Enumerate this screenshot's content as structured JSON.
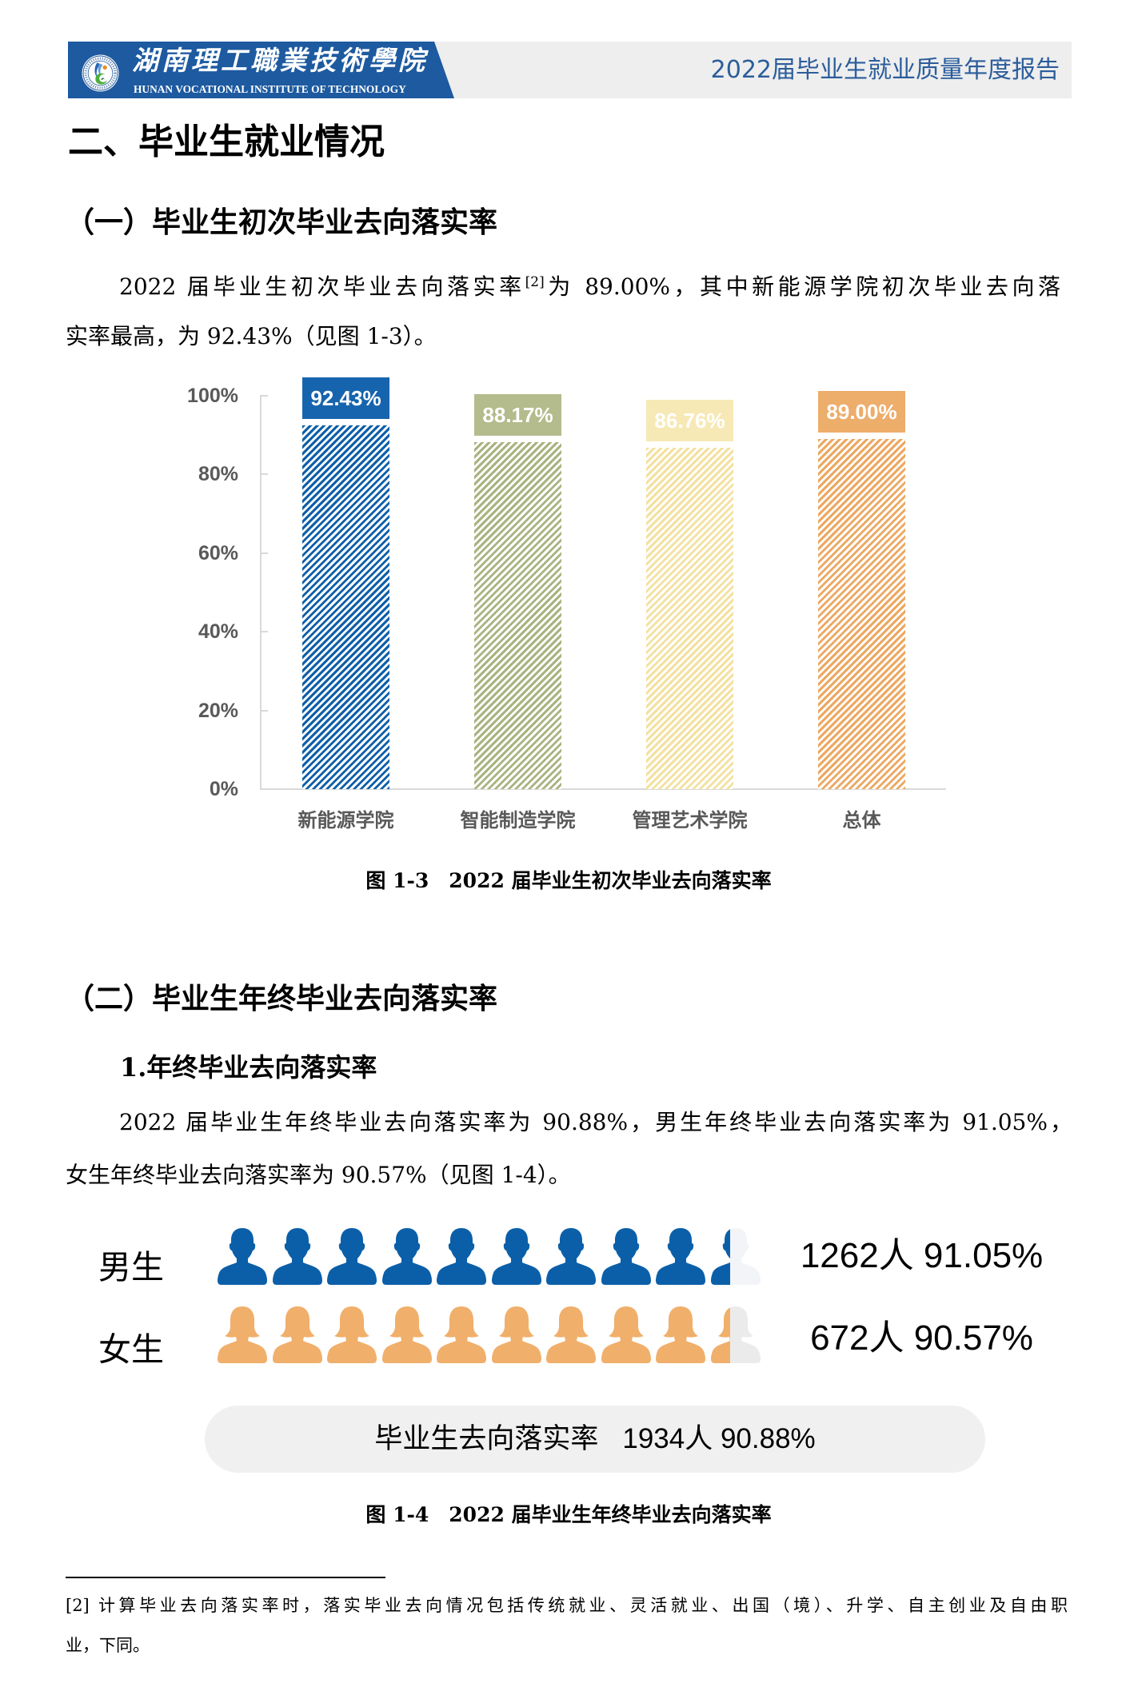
{
  "header": {
    "school_name_cn": "湖南理工職業技術學院",
    "school_name_en": "HUNAN VOCATIONAL INSTITUTE OF TECHNOLOGY",
    "report_title": "2022届毕业生就业质量年度报告",
    "logo_icon": "school-emblem-icon",
    "brand_color": "#1d5aa0",
    "bar_color": "#eeeeee",
    "title_color": "#2b5d9b"
  },
  "section": {
    "title": "二、毕业生就业情况"
  },
  "subsection_1": {
    "heading": "（一）毕业生初次毕业去向落实率",
    "paragraph": {
      "line1_before_ref": "2022 届毕业生初次毕业去向落实率",
      "footnote_ref": "[2]",
      "line1_after_ref": "为 89.00%，其中新能源学院初次毕业去向落",
      "line2": "实率最高，为 92.43%（见图 1-3）。"
    },
    "figure_caption": "图 1-3　2022 届毕业生初次毕业去向落实率"
  },
  "subsection_2": {
    "heading": "（二）毕业生年终毕业去向落实率",
    "subheading": "1.年终毕业去向落实率",
    "paragraph": {
      "lines": [
        "2022 届毕业生年终毕业去向落实率为 90.88%，男生年终毕业去向落实率为 91.05%，",
        "女生年终毕业去向落实率为 90.57%（见图 1-4）。"
      ]
    },
    "figure": {
      "rows": [
        {
          "key": "male",
          "label": "男生",
          "value_text": "1262人 91.05%",
          "icon": "male-person-icon",
          "color": "#0b5fa8",
          "empty_color": "#f2f4f8",
          "icon_count": 10,
          "last_icon_fill": 0.4
        },
        {
          "key": "female",
          "label": "女生",
          "value_text": "672人 90.57%",
          "icon": "female-person-icon",
          "color": "#f0af6b",
          "empty_color": "#ebebeb",
          "icon_count": 10,
          "last_icon_fill": 0.4
        }
      ],
      "total": {
        "label": "毕业生去向落实率",
        "value_text": "1934人 90.88%",
        "background": "#f0f0f0"
      },
      "caption": "图 1-4　2022 届毕业生年终毕业去向落实率"
    }
  },
  "footnote": {
    "lines": [
      "[2] 计算毕业去向落实率时，落实毕业去向情况包括传统就业、灵活就业、出国（境）、升学、自主创业及自由职",
      "业，下同。"
    ]
  },
  "chart_data": [
    {
      "type": "bar",
      "title": "图 1-3 2022 届毕业生初次毕业去向落实率",
      "categories": [
        "新能源学院",
        "智能制造学院",
        "管理艺术学院",
        "总体"
      ],
      "values": [
        92.43,
        88.17,
        86.76,
        89.0
      ],
      "value_labels": [
        "92.43%",
        "88.17%",
        "86.76%",
        "89.00%"
      ],
      "colors": [
        "#0f5fa8",
        "#a9b381",
        "#f3e1a0",
        "#eca862"
      ],
      "label_colors": [
        "#1764ae",
        "#b4bb8c",
        "#f7e9b6",
        "#edad6b"
      ],
      "pattern": "diagonal-stripes",
      "yticks": [
        "0%",
        "20%",
        "40%",
        "60%",
        "80%",
        "100%"
      ],
      "ylim": [
        0,
        100
      ],
      "xlabel": "",
      "ylabel": "",
      "grid": false,
      "legend": null
    },
    {
      "type": "bar",
      "orientation": "horizontal",
      "style": "pictogram",
      "title": "图 1-4 2022 届毕业生年终毕业去向落实率",
      "categories": [
        "男生",
        "女生",
        "毕业生去向落实率"
      ],
      "counts": [
        1262,
        672,
        1934
      ],
      "values": [
        91.05,
        90.57,
        90.88
      ],
      "value_labels": [
        "1262人 91.05%",
        "672人 90.57%",
        "1934人 90.88%"
      ],
      "xlim": [
        0,
        100
      ]
    }
  ]
}
